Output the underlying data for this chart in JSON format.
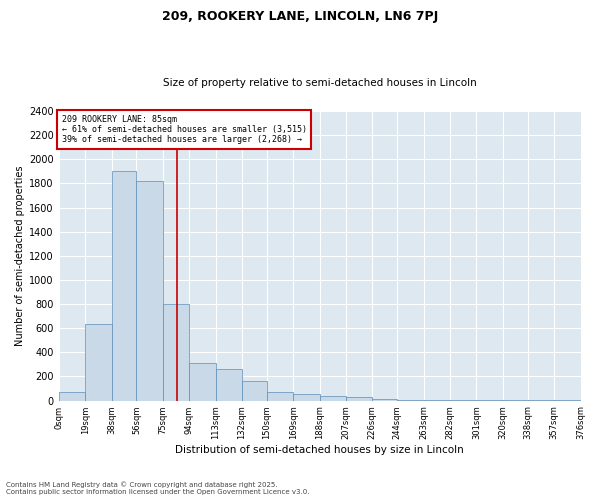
{
  "title1": "209, ROOKERY LANE, LINCOLN, LN6 7PJ",
  "title2": "Size of property relative to semi-detached houses in Lincoln",
  "xlabel": "Distribution of semi-detached houses by size in Lincoln",
  "ylabel": "Number of semi-detached properties",
  "annotation_line1": "209 ROOKERY LANE: 85sqm",
  "annotation_line2": "← 61% of semi-detached houses are smaller (3,515)",
  "annotation_line3": "39% of semi-detached houses are larger (2,268) →",
  "footer1": "Contains HM Land Registry data © Crown copyright and database right 2025.",
  "footer2": "Contains public sector information licensed under the Open Government Licence v3.0.",
  "property_size": 85,
  "bin_edges": [
    0,
    19,
    38,
    56,
    75,
    94,
    113,
    132,
    150,
    169,
    188,
    207,
    226,
    244,
    263,
    282,
    301,
    320,
    338,
    357,
    376
  ],
  "bar_heights": [
    75,
    635,
    1900,
    1820,
    800,
    310,
    260,
    160,
    75,
    55,
    40,
    30,
    10,
    5,
    5,
    5,
    2,
    2,
    2,
    2
  ],
  "bar_color": "#c9d9e8",
  "bar_edge_color": "#5b8db8",
  "vline_color": "#cc0000",
  "vline_x": 85,
  "annotation_box_color": "#cc0000",
  "background_color": "#dde8f0",
  "ylim": [
    0,
    2400
  ],
  "yticks": [
    0,
    200,
    400,
    600,
    800,
    1000,
    1200,
    1400,
    1600,
    1800,
    2000,
    2200,
    2400
  ],
  "tick_labels": [
    "0sqm",
    "19sqm",
    "38sqm",
    "56sqm",
    "75sqm",
    "94sqm",
    "113sqm",
    "132sqm",
    "150sqm",
    "169sqm",
    "188sqm",
    "207sqm",
    "226sqm",
    "244sqm",
    "263sqm",
    "282sqm",
    "301sqm",
    "320sqm",
    "338sqm",
    "357sqm",
    "376sqm"
  ]
}
